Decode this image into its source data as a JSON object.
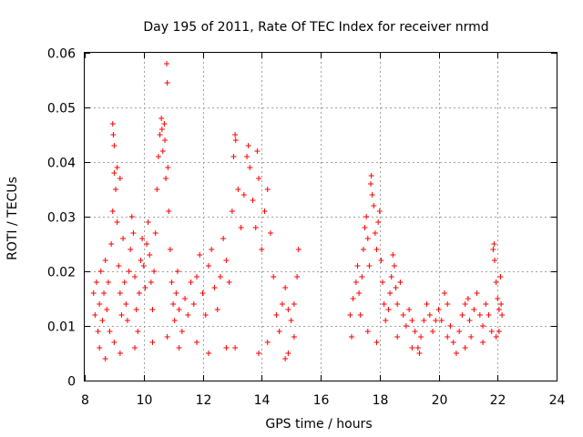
{
  "chart_data": {
    "type": "scatter",
    "title": "Day 195 of 2011, Rate Of TEC Index for receiver nrmd",
    "xlabel": "GPS time / hours",
    "ylabel": "ROTI / TECUs",
    "xlim": [
      8,
      24
    ],
    "ylim": [
      0,
      0.06
    ],
    "xticks": [
      "8",
      "10",
      "12",
      "14",
      "16",
      "18",
      "20",
      "22",
      "24"
    ],
    "yticks": [
      "0",
      "0.01",
      "0.02",
      "0.03",
      "0.04",
      "0.05",
      "0.06"
    ],
    "grid": true,
    "marker": "+",
    "color": "#ff0000",
    "series": [
      {
        "points": [
          [
            8.3,
            0.016
          ],
          [
            8.35,
            0.012
          ],
          [
            8.4,
            0.018
          ],
          [
            8.45,
            0.009
          ],
          [
            8.5,
            0.014
          ],
          [
            8.55,
            0.02
          ],
          [
            8.6,
            0.011
          ],
          [
            8.65,
            0.016
          ],
          [
            8.7,
            0.022
          ],
          [
            8.75,
            0.013
          ],
          [
            8.8,
            0.018
          ],
          [
            8.85,
            0.009
          ],
          [
            8.9,
            0.025
          ],
          [
            8.95,
            0.031
          ],
          [
            9.0,
            0.038
          ],
          [
            9.05,
            0.035
          ],
          [
            9.1,
            0.029
          ],
          [
            9.15,
            0.021
          ],
          [
            9.2,
            0.016
          ],
          [
            9.25,
            0.012
          ],
          [
            8.95,
            0.047
          ],
          [
            8.97,
            0.045
          ],
          [
            9.0,
            0.043
          ],
          [
            9.1,
            0.039
          ],
          [
            9.2,
            0.037
          ],
          [
            9.3,
            0.026
          ],
          [
            9.35,
            0.018
          ],
          [
            9.4,
            0.014
          ],
          [
            9.45,
            0.011
          ],
          [
            9.5,
            0.02
          ],
          [
            9.55,
            0.024
          ],
          [
            9.6,
            0.03
          ],
          [
            9.65,
            0.027
          ],
          [
            9.7,
            0.019
          ],
          [
            9.75,
            0.013
          ],
          [
            9.8,
            0.009
          ],
          [
            9.85,
            0.016
          ],
          [
            9.9,
            0.022
          ],
          [
            9.95,
            0.026
          ],
          [
            10.0,
            0.021
          ],
          [
            10.05,
            0.017
          ],
          [
            10.1,
            0.025
          ],
          [
            10.15,
            0.029
          ],
          [
            10.2,
            0.023
          ],
          [
            10.25,
            0.018
          ],
          [
            10.3,
            0.013
          ],
          [
            10.35,
            0.02
          ],
          [
            10.4,
            0.027
          ],
          [
            10.45,
            0.035
          ],
          [
            10.5,
            0.041
          ],
          [
            10.55,
            0.045
          ],
          [
            10.6,
            0.048
          ],
          [
            10.62,
            0.046
          ],
          [
            10.65,
            0.042
          ],
          [
            10.7,
            0.047
          ],
          [
            10.72,
            0.044
          ],
          [
            10.75,
            0.037
          ],
          [
            10.78,
            0.058
          ],
          [
            10.8,
            0.0545
          ],
          [
            10.82,
            0.039
          ],
          [
            10.85,
            0.031
          ],
          [
            10.9,
            0.024
          ],
          [
            10.95,
            0.018
          ],
          [
            11.0,
            0.014
          ],
          [
            11.05,
            0.011
          ],
          [
            11.1,
            0.016
          ],
          [
            11.15,
            0.02
          ],
          [
            11.2,
            0.013
          ],
          [
            11.3,
            0.009
          ],
          [
            11.4,
            0.015
          ],
          [
            11.5,
            0.012
          ],
          [
            11.6,
            0.018
          ],
          [
            11.7,
            0.014
          ],
          [
            11.8,
            0.019
          ],
          [
            11.9,
            0.023
          ],
          [
            12.0,
            0.016
          ],
          [
            12.1,
            0.012
          ],
          [
            12.2,
            0.021
          ],
          [
            12.3,
            0.024
          ],
          [
            12.4,
            0.017
          ],
          [
            12.5,
            0.013
          ],
          [
            12.6,
            0.019
          ],
          [
            12.7,
            0.026
          ],
          [
            12.8,
            0.022
          ],
          [
            12.9,
            0.018
          ],
          [
            13.0,
            0.031
          ],
          [
            13.05,
            0.041
          ],
          [
            13.1,
            0.045
          ],
          [
            13.12,
            0.044
          ],
          [
            13.2,
            0.035
          ],
          [
            13.3,
            0.028
          ],
          [
            13.4,
            0.034
          ],
          [
            13.5,
            0.041
          ],
          [
            13.55,
            0.043
          ],
          [
            13.6,
            0.039
          ],
          [
            13.7,
            0.033
          ],
          [
            13.8,
            0.028
          ],
          [
            13.85,
            0.042
          ],
          [
            13.9,
            0.037
          ],
          [
            14.0,
            0.024
          ],
          [
            14.1,
            0.031
          ],
          [
            14.2,
            0.035
          ],
          [
            14.3,
            0.027
          ],
          [
            14.4,
            0.019
          ],
          [
            14.5,
            0.012
          ],
          [
            14.6,
            0.009
          ],
          [
            14.7,
            0.014
          ],
          [
            14.8,
            0.017
          ],
          [
            14.9,
            0.013
          ],
          [
            15.0,
            0.011
          ],
          [
            15.1,
            0.014
          ],
          [
            15.2,
            0.019
          ],
          [
            15.25,
            0.024
          ],
          [
            15.1,
            0.008
          ],
          [
            14.9,
            0.005
          ],
          [
            14.8,
            0.004
          ],
          [
            9.2,
            0.005
          ],
          [
            9.7,
            0.006
          ],
          [
            10.3,
            0.007
          ],
          [
            11.2,
            0.006
          ],
          [
            12.2,
            0.005
          ],
          [
            13.1,
            0.006
          ],
          [
            13.9,
            0.005
          ],
          [
            8.5,
            0.006
          ],
          [
            8.7,
            0.004
          ],
          [
            9.0,
            0.007
          ],
          [
            10.8,
            0.008
          ],
          [
            11.8,
            0.007
          ],
          [
            12.8,
            0.006
          ],
          [
            14.2,
            0.007
          ],
          [
            17.0,
            0.012
          ],
          [
            17.05,
            0.008
          ],
          [
            17.1,
            0.015
          ],
          [
            17.2,
            0.018
          ],
          [
            17.25,
            0.021
          ],
          [
            17.3,
            0.016
          ],
          [
            17.35,
            0.012
          ],
          [
            17.4,
            0.019
          ],
          [
            17.45,
            0.024
          ],
          [
            17.5,
            0.028
          ],
          [
            17.55,
            0.03
          ],
          [
            17.6,
            0.026
          ],
          [
            17.65,
            0.021
          ],
          [
            17.7,
            0.036
          ],
          [
            17.72,
            0.0375
          ],
          [
            17.75,
            0.034
          ],
          [
            17.8,
            0.032
          ],
          [
            17.85,
            0.027
          ],
          [
            17.9,
            0.024
          ],
          [
            17.95,
            0.029
          ],
          [
            18.0,
            0.031
          ],
          [
            18.05,
            0.022
          ],
          [
            18.1,
            0.018
          ],
          [
            18.15,
            0.014
          ],
          [
            18.2,
            0.011
          ],
          [
            18.3,
            0.013
          ],
          [
            18.35,
            0.016
          ],
          [
            18.4,
            0.019
          ],
          [
            18.45,
            0.023
          ],
          [
            18.5,
            0.021
          ],
          [
            18.55,
            0.017
          ],
          [
            18.6,
            0.014
          ],
          [
            18.7,
            0.018
          ],
          [
            18.8,
            0.012
          ],
          [
            18.9,
            0.01
          ],
          [
            19.0,
            0.013
          ],
          [
            19.1,
            0.011
          ],
          [
            19.2,
            0.009
          ],
          [
            19.3,
            0.006
          ],
          [
            19.35,
            0.005
          ],
          [
            19.4,
            0.008
          ],
          [
            19.5,
            0.011
          ],
          [
            19.6,
            0.014
          ],
          [
            19.7,
            0.012
          ],
          [
            19.8,
            0.009
          ],
          [
            19.9,
            0.011
          ],
          [
            20.0,
            0.013
          ],
          [
            20.1,
            0.011
          ],
          [
            20.2,
            0.016
          ],
          [
            20.3,
            0.014
          ],
          [
            20.4,
            0.01
          ],
          [
            20.5,
            0.007
          ],
          [
            20.6,
            0.005
          ],
          [
            20.7,
            0.009
          ],
          [
            20.8,
            0.012
          ],
          [
            20.9,
            0.014
          ],
          [
            21.0,
            0.015
          ],
          [
            21.05,
            0.011
          ],
          [
            21.1,
            0.008
          ],
          [
            21.2,
            0.013
          ],
          [
            21.3,
            0.016
          ],
          [
            21.4,
            0.012
          ],
          [
            21.5,
            0.01
          ],
          [
            21.6,
            0.014
          ],
          [
            21.7,
            0.012
          ],
          [
            21.8,
            0.009
          ],
          [
            21.85,
            0.024
          ],
          [
            21.88,
            0.025
          ],
          [
            21.9,
            0.022
          ],
          [
            21.95,
            0.018
          ],
          [
            22.0,
            0.015
          ],
          [
            22.05,
            0.013
          ],
          [
            22.1,
            0.019
          ],
          [
            22.12,
            0.014
          ],
          [
            22.15,
            0.012
          ],
          [
            22.05,
            0.009
          ],
          [
            21.95,
            0.008
          ],
          [
            17.6,
            0.009
          ],
          [
            17.9,
            0.007
          ],
          [
            18.6,
            0.008
          ],
          [
            19.1,
            0.006
          ],
          [
            20.3,
            0.008
          ],
          [
            20.9,
            0.006
          ],
          [
            21.5,
            0.007
          ]
        ]
      }
    ]
  }
}
